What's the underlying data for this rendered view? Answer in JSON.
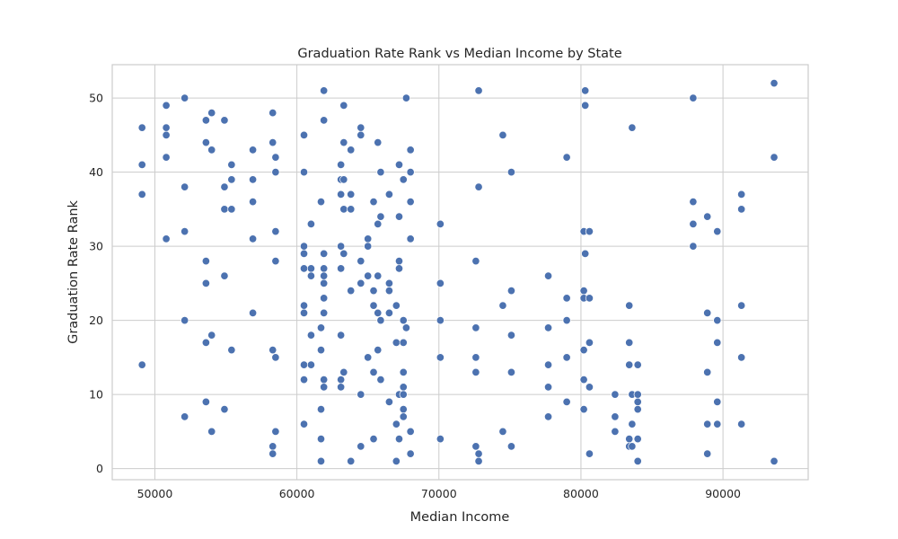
{
  "chart_data": {
    "type": "scatter",
    "title": "Graduation Rate Rank vs Median Income by State",
    "xlabel": "Median Income",
    "ylabel": "Graduation Rate Rank",
    "xlim": [
      47000,
      96000
    ],
    "ylim": [
      -1.5,
      54.5
    ],
    "xticks": [
      50000,
      60000,
      70000,
      80000,
      90000
    ],
    "yticks": [
      0,
      10,
      20,
      30,
      40,
      50
    ],
    "grid": true,
    "legend": "none",
    "marker_color": "#4c72b0",
    "points": [
      [
        49100,
        46
      ],
      [
        49100,
        41
      ],
      [
        49100,
        37
      ],
      [
        49100,
        14
      ],
      [
        50800,
        49
      ],
      [
        50800,
        46
      ],
      [
        50800,
        45
      ],
      [
        50800,
        42
      ],
      [
        50800,
        31
      ],
      [
        52100,
        50
      ],
      [
        52100,
        38
      ],
      [
        52100,
        32
      ],
      [
        52100,
        20
      ],
      [
        52100,
        7
      ],
      [
        53600,
        47
      ],
      [
        53600,
        44
      ],
      [
        53600,
        28
      ],
      [
        53600,
        25
      ],
      [
        53600,
        17
      ],
      [
        53600,
        9
      ],
      [
        54000,
        48
      ],
      [
        54000,
        43
      ],
      [
        54000,
        18
      ],
      [
        54000,
        5
      ],
      [
        54900,
        47
      ],
      [
        54900,
        38
      ],
      [
        54900,
        35
      ],
      [
        54900,
        26
      ],
      [
        54900,
        8
      ],
      [
        55400,
        41
      ],
      [
        55400,
        39
      ],
      [
        55400,
        35
      ],
      [
        55400,
        16
      ],
      [
        56900,
        43
      ],
      [
        56900,
        39
      ],
      [
        56900,
        36
      ],
      [
        56900,
        31
      ],
      [
        56900,
        21
      ],
      [
        58300,
        48
      ],
      [
        58300,
        44
      ],
      [
        58300,
        16
      ],
      [
        58300,
        3
      ],
      [
        58300,
        2
      ],
      [
        58500,
        42
      ],
      [
        58500,
        40
      ],
      [
        58500,
        32
      ],
      [
        58500,
        28
      ],
      [
        58500,
        15
      ],
      [
        58500,
        5
      ],
      [
        60500,
        45
      ],
      [
        60500,
        40
      ],
      [
        60500,
        30
      ],
      [
        60500,
        29
      ],
      [
        60500,
        27
      ],
      [
        60500,
        22
      ],
      [
        60500,
        21
      ],
      [
        60500,
        14
      ],
      [
        60500,
        12
      ],
      [
        60500,
        6
      ],
      [
        61000,
        33
      ],
      [
        61000,
        27
      ],
      [
        61000,
        26
      ],
      [
        61000,
        18
      ],
      [
        61000,
        14
      ],
      [
        61700,
        36
      ],
      [
        61700,
        19
      ],
      [
        61700,
        16
      ],
      [
        61700,
        8
      ],
      [
        61700,
        4
      ],
      [
        61700,
        1
      ],
      [
        61900,
        51
      ],
      [
        61900,
        47
      ],
      [
        61900,
        29
      ],
      [
        61900,
        27
      ],
      [
        61900,
        26
      ],
      [
        61900,
        25
      ],
      [
        61900,
        23
      ],
      [
        61900,
        21
      ],
      [
        61900,
        12
      ],
      [
        61900,
        11
      ],
      [
        63100,
        41
      ],
      [
        63100,
        39
      ],
      [
        63100,
        37
      ],
      [
        63100,
        30
      ],
      [
        63100,
        27
      ],
      [
        63100,
        18
      ],
      [
        63100,
        12
      ],
      [
        63100,
        11
      ],
      [
        63300,
        49
      ],
      [
        63300,
        44
      ],
      [
        63300,
        39
      ],
      [
        63300,
        35
      ],
      [
        63300,
        29
      ],
      [
        63300,
        13
      ],
      [
        63800,
        43
      ],
      [
        63800,
        37
      ],
      [
        63800,
        35
      ],
      [
        63800,
        24
      ],
      [
        63800,
        1
      ],
      [
        64500,
        46
      ],
      [
        64500,
        45
      ],
      [
        64500,
        28
      ],
      [
        64500,
        25
      ],
      [
        64500,
        10
      ],
      [
        64500,
        3
      ],
      [
        65000,
        31
      ],
      [
        65000,
        30
      ],
      [
        65000,
        26
      ],
      [
        65000,
        15
      ],
      [
        65400,
        36
      ],
      [
        65400,
        24
      ],
      [
        65400,
        22
      ],
      [
        65400,
        13
      ],
      [
        65400,
        4
      ],
      [
        65700,
        44
      ],
      [
        65700,
        33
      ],
      [
        65700,
        26
      ],
      [
        65700,
        21
      ],
      [
        65700,
        16
      ],
      [
        65900,
        40
      ],
      [
        65900,
        34
      ],
      [
        65900,
        20
      ],
      [
        65900,
        12
      ],
      [
        66500,
        37
      ],
      [
        66500,
        25
      ],
      [
        66500,
        24
      ],
      [
        66500,
        21
      ],
      [
        66500,
        9
      ],
      [
        67000,
        22
      ],
      [
        67000,
        17
      ],
      [
        67000,
        6
      ],
      [
        67000,
        1
      ],
      [
        67200,
        41
      ],
      [
        67200,
        34
      ],
      [
        67200,
        28
      ],
      [
        67200,
        27
      ],
      [
        67200,
        10
      ],
      [
        67200,
        4
      ],
      [
        67500,
        39
      ],
      [
        67500,
        20
      ],
      [
        67500,
        17
      ],
      [
        67500,
        13
      ],
      [
        67500,
        11
      ],
      [
        67500,
        10
      ],
      [
        67500,
        8
      ],
      [
        67500,
        7
      ],
      [
        67700,
        50
      ],
      [
        67700,
        19
      ],
      [
        68000,
        43
      ],
      [
        68000,
        40
      ],
      [
        68000,
        36
      ],
      [
        68000,
        31
      ],
      [
        68000,
        5
      ],
      [
        68000,
        2
      ],
      [
        70100,
        33
      ],
      [
        70100,
        25
      ],
      [
        70100,
        20
      ],
      [
        70100,
        15
      ],
      [
        70100,
        4
      ],
      [
        72600,
        28
      ],
      [
        72600,
        19
      ],
      [
        72600,
        15
      ],
      [
        72600,
        13
      ],
      [
        72600,
        3
      ],
      [
        72800,
        51
      ],
      [
        72800,
        38
      ],
      [
        72800,
        2
      ],
      [
        72800,
        1
      ],
      [
        74500,
        45
      ],
      [
        74500,
        22
      ],
      [
        74500,
        5
      ],
      [
        75100,
        40
      ],
      [
        75100,
        24
      ],
      [
        75100,
        18
      ],
      [
        75100,
        13
      ],
      [
        75100,
        3
      ],
      [
        77700,
        26
      ],
      [
        77700,
        19
      ],
      [
        77700,
        14
      ],
      [
        77700,
        11
      ],
      [
        77700,
        7
      ],
      [
        79000,
        42
      ],
      [
        79000,
        23
      ],
      [
        79000,
        20
      ],
      [
        79000,
        15
      ],
      [
        79000,
        9
      ],
      [
        80200,
        32
      ],
      [
        80200,
        24
      ],
      [
        80200,
        23
      ],
      [
        80200,
        16
      ],
      [
        80200,
        12
      ],
      [
        80200,
        8
      ],
      [
        80300,
        51
      ],
      [
        80300,
        49
      ],
      [
        80300,
        29
      ],
      [
        80600,
        32
      ],
      [
        80600,
        23
      ],
      [
        80600,
        17
      ],
      [
        80600,
        11
      ],
      [
        80600,
        2
      ],
      [
        82400,
        10
      ],
      [
        82400,
        7
      ],
      [
        82400,
        5
      ],
      [
        83400,
        22
      ],
      [
        83400,
        17
      ],
      [
        83400,
        14
      ],
      [
        83400,
        4
      ],
      [
        83400,
        3
      ],
      [
        83600,
        46
      ],
      [
        83600,
        10
      ],
      [
        83600,
        6
      ],
      [
        83600,
        3
      ],
      [
        84000,
        14
      ],
      [
        84000,
        10
      ],
      [
        84000,
        9
      ],
      [
        84000,
        8
      ],
      [
        84000,
        4
      ],
      [
        84000,
        1
      ],
      [
        87900,
        50
      ],
      [
        87900,
        36
      ],
      [
        87900,
        33
      ],
      [
        87900,
        30
      ],
      [
        88900,
        34
      ],
      [
        88900,
        21
      ],
      [
        88900,
        13
      ],
      [
        88900,
        6
      ],
      [
        88900,
        2
      ],
      [
        89600,
        32
      ],
      [
        89600,
        20
      ],
      [
        89600,
        17
      ],
      [
        89600,
        9
      ],
      [
        89600,
        6
      ],
      [
        91300,
        37
      ],
      [
        91300,
        35
      ],
      [
        91300,
        22
      ],
      [
        91300,
        15
      ],
      [
        91300,
        6
      ],
      [
        93600,
        52
      ],
      [
        93600,
        42
      ],
      [
        93600,
        1
      ]
    ]
  }
}
